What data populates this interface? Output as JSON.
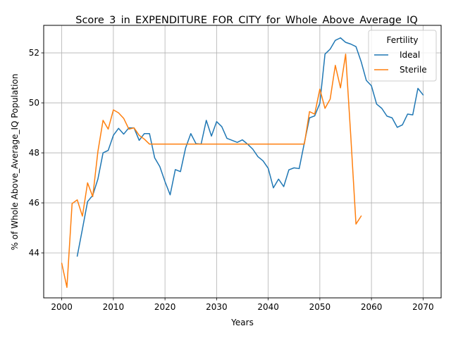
{
  "chart_data": {
    "type": "line",
    "title": "Score_3_in_EXPENDITURE_FOR_CITY_for_Whole_Above_Average_IQ",
    "xlabel": "Years",
    "ylabel": "% of Whole Above_Average_IQ Population",
    "xlim": [
      1996.5,
      2073.5
    ],
    "ylim": [
      42.2,
      53.1
    ],
    "xticks": [
      2000,
      2010,
      2020,
      2030,
      2040,
      2050,
      2060,
      2070
    ],
    "yticks": [
      44,
      46,
      48,
      50,
      52
    ],
    "grid": true,
    "legend": {
      "title": "Fertility",
      "position": "top-right"
    },
    "series": [
      {
        "name": "Ideal",
        "color": "#1f77b4",
        "x": [
          2003,
          2004,
          2005,
          2006,
          2007,
          2008,
          2009,
          2010,
          2011,
          2012,
          2013,
          2014,
          2015,
          2016,
          2017,
          2018,
          2019,
          2020,
          2021,
          2022,
          2023,
          2024,
          2025,
          2026,
          2027,
          2028,
          2029,
          2030,
          2031,
          2032,
          2033,
          2034,
          2035,
          2036,
          2037,
          2038,
          2039,
          2040,
          2041,
          2042,
          2043,
          2044,
          2045,
          2046,
          2047,
          2048,
          2049,
          2050,
          2051,
          2052,
          2053,
          2054,
          2055,
          2056,
          2057,
          2058,
          2059,
          2060,
          2061,
          2062,
          2063,
          2064,
          2065,
          2066,
          2067,
          2068,
          2069,
          2070
        ],
        "values": [
          43.87,
          44.95,
          46.05,
          46.3,
          46.95,
          48.0,
          48.1,
          48.7,
          48.98,
          48.75,
          49.0,
          49.0,
          48.5,
          48.77,
          48.77,
          47.8,
          47.45,
          46.85,
          46.32,
          47.33,
          47.25,
          48.2,
          48.77,
          48.37,
          48.35,
          49.3,
          48.67,
          49.25,
          49.05,
          48.58,
          48.5,
          48.42,
          48.52,
          48.35,
          48.15,
          47.85,
          47.68,
          47.38,
          46.6,
          46.95,
          46.65,
          47.32,
          47.4,
          47.37,
          48.4,
          49.4,
          49.48,
          49.98,
          51.95,
          52.15,
          52.5,
          52.6,
          52.42,
          52.35,
          52.25,
          51.65,
          50.9,
          50.68,
          49.95,
          49.78,
          49.47,
          49.4,
          49.02,
          49.12,
          49.55,
          49.52,
          50.58,
          50.32
        ]
      },
      {
        "name": "Sterile",
        "color": "#ff7f0e",
        "x": [
          2000,
          2001,
          2002,
          2003,
          2004,
          2005,
          2006,
          2007,
          2008,
          2009,
          2010,
          2011,
          2012,
          2013,
          2014,
          2015,
          2016,
          2017,
          2018,
          2019,
          2020,
          2021,
          2022,
          2023,
          2024,
          2025,
          2026,
          2027,
          2028,
          2029,
          2030,
          2031,
          2032,
          2033,
          2034,
          2035,
          2036,
          2037,
          2038,
          2039,
          2040,
          2041,
          2042,
          2043,
          2044,
          2045,
          2046,
          2047,
          2048,
          2049,
          2050,
          2051,
          2052,
          2053,
          2054,
          2055,
          2056,
          2057,
          2058
        ],
        "values": [
          43.58,
          42.62,
          45.97,
          46.12,
          45.47,
          46.8,
          46.25,
          48.05,
          49.3,
          48.95,
          49.72,
          49.6,
          49.38,
          48.95,
          49.0,
          48.7,
          48.55,
          48.35,
          48.35,
          48.35,
          48.35,
          48.35,
          48.35,
          48.35,
          48.35,
          48.35,
          48.35,
          48.35,
          48.35,
          48.35,
          48.35,
          48.35,
          48.35,
          48.35,
          48.35,
          48.35,
          48.35,
          48.35,
          48.35,
          48.35,
          48.35,
          48.35,
          48.35,
          48.35,
          48.35,
          48.35,
          48.35,
          48.35,
          49.65,
          49.55,
          50.55,
          49.78,
          50.15,
          51.5,
          50.6,
          51.95,
          48.65,
          45.15,
          45.47
        ]
      }
    ]
  }
}
